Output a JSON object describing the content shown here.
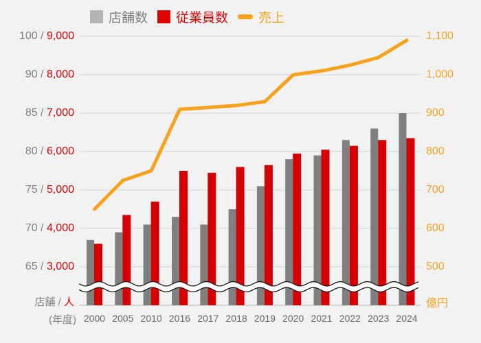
{
  "legend": {
    "items": [
      {
        "id": "stores",
        "label": "店舗数",
        "swatch": "square",
        "swatch_color": "#B3B3B3",
        "label_color": "#7F7F7F"
      },
      {
        "id": "employees",
        "label": "従業員数",
        "swatch": "square",
        "swatch_color": "#E00000",
        "label_color": "#E00000"
      },
      {
        "id": "sales",
        "label": "売上",
        "swatch": "dash",
        "swatch_color": "#F7A11C",
        "label_color": "#F7A11C"
      }
    ]
  },
  "chart_data": {
    "type": "combo-bar-line",
    "legend_position": "top",
    "grid": true,
    "axis_break": {
      "present": true,
      "style": "white-wave-band"
    },
    "categories": [
      "2000",
      "2005",
      "2010",
      "2016",
      "2017",
      "2018",
      "2019",
      "2020",
      "2021",
      "2022",
      "2023",
      "2024"
    ],
    "series": [
      {
        "name": "店舗数",
        "type": "bar",
        "axis": "stores",
        "color": "#7F7F7F",
        "values": [
          68.5,
          69.5,
          70.5,
          71.5,
          70.5,
          72.5,
          75.5,
          79,
          79.5,
          81.5,
          83,
          85
        ]
      },
      {
        "name": "従業員数",
        "type": "bar",
        "axis": "employees",
        "color": "#D60000",
        "values": [
          3600,
          4350,
          4700,
          5500,
          5450,
          5600,
          5650,
          5950,
          6050,
          6150,
          6300,
          6350
        ]
      },
      {
        "name": "売上",
        "type": "line",
        "axis": "sales",
        "color": "#F7A11C",
        "values": [
          650,
          725,
          750,
          910,
          915,
          920,
          930,
          1000,
          1010,
          1025,
          1045,
          1090
        ]
      }
    ],
    "axes": {
      "left": {
        "tick_values_stores": [
          65,
          70,
          75,
          80,
          85,
          90,
          100
        ],
        "tick_values_employees": [
          3000,
          4000,
          5000,
          6000,
          7000,
          8000,
          9000
        ],
        "tick_labels": [
          {
            "stores": "100",
            "employees": "9,000"
          },
          {
            "stores": "90",
            "employees": "8,000"
          },
          {
            "stores": "85",
            "employees": "7,000"
          },
          {
            "stores": "80",
            "employees": "6,000"
          },
          {
            "stores": "75",
            "employees": "5,000"
          },
          {
            "stores": "70",
            "employees": "4,000"
          },
          {
            "stores": "65",
            "employees": "3,000"
          }
        ],
        "separator": " / ",
        "unit_stores": "店舗",
        "unit_separator": " / ",
        "unit_people": "人"
      },
      "right": {
        "tick_values": [
          500,
          600,
          700,
          800,
          900,
          1000,
          1100
        ],
        "tick_labels": [
          "1,100",
          "1,000",
          "900",
          "800",
          "700",
          "600",
          "500"
        ],
        "unit": "億円"
      },
      "x": {
        "unit": "(年度)"
      }
    }
  },
  "colors": {
    "background": "#F2F2F2",
    "gridline": "#DCDCDC",
    "baseline": "#C9C9C9",
    "store_text": "#808080",
    "employee_text": "#DD0000",
    "sales_text": "#F7A11C",
    "year_text": "#666666",
    "break_band": "#FFFFFF",
    "break_outline": "#111111"
  }
}
